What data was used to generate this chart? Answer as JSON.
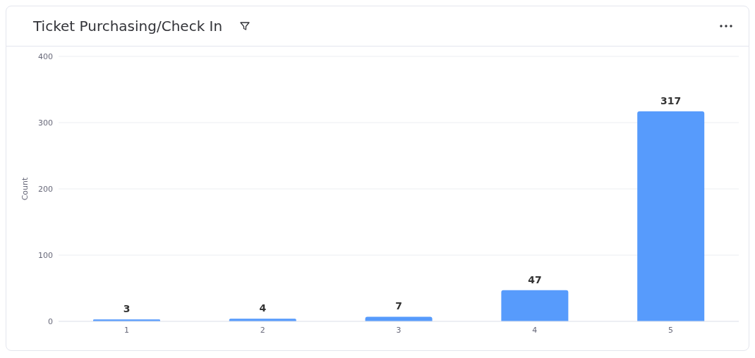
{
  "chart_data": {
    "type": "bar",
    "title": "Ticket Purchasing/Check In",
    "ylabel": "Count",
    "categories": [
      "1",
      "2",
      "3",
      "4",
      "5"
    ],
    "values": [
      3,
      4,
      7,
      47,
      317
    ],
    "color": "#579bfc",
    "ylim": [
      0,
      400
    ],
    "yticks": [
      0,
      100,
      200,
      300,
      400
    ],
    "grid": "y",
    "data_labels": true
  }
}
